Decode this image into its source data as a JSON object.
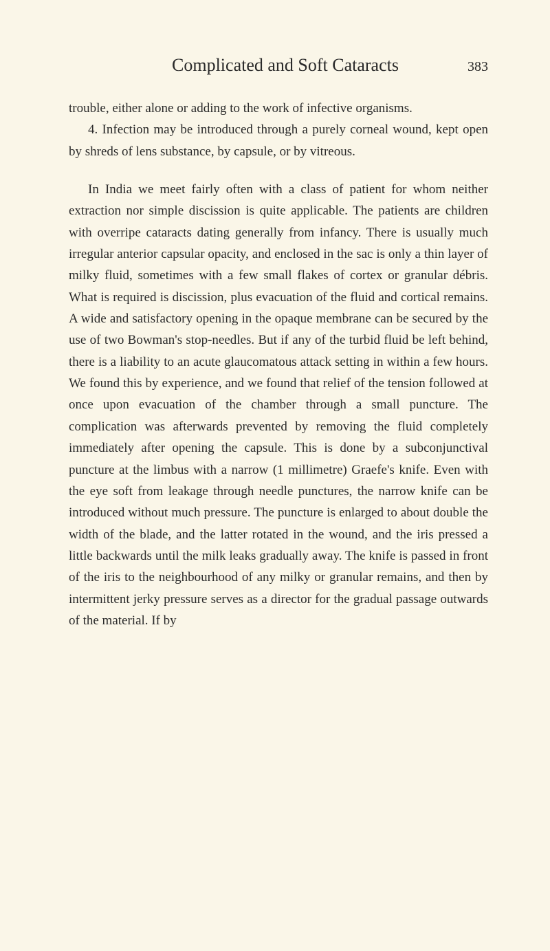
{
  "header": {
    "title": "Complicated and Soft Cataracts",
    "page_number": "383"
  },
  "paragraphs": {
    "p1": "trouble, either alone or adding to the work of infective organisms.",
    "p2": "4. Infection may be introduced through a purely corneal wound, kept open by shreds of lens substance, by capsule, or by vitreous.",
    "p3": "In India we meet fairly often with a class of patient for whom neither extraction nor simple discission is quite applicable. The patients are children with overripe cataracts dating generally from infancy. There is usually much irregular anterior capsular opacity, and enclosed in the sac is only a thin layer of milky fluid, sometimes with a few small flakes of cortex or granular débris. What is required is discission, plus evacuation of the fluid and cortical remains. A wide and satisfactory opening in the opaque membrane can be secured by the use of two Bowman's stop-needles. But if any of the turbid fluid be left behind, there is a liability to an acute glaucomatous attack setting in within a few hours. We found this by experience, and we found that relief of the tension followed at once upon evacuation of the chamber through a small puncture. The complication was afterwards prevented by removing the fluid completely immediately after opening the capsule. This is done by a subconjunctival puncture at the limbus with a narrow (1 millimetre) Graefe's knife. Even with the eye soft from leakage through needle punctures, the narrow knife can be introduced without much pressure. The puncture is enlarged to about double the width of the blade, and the latter rotated in the wound, and the iris pressed a little backwards until the milk leaks gradually away. The knife is passed in front of the iris to the neighbourhood of any milky or granular remains, and then by intermittent jerky pressure serves as a director for the gradual passage outwards of the material. If by"
  },
  "colors": {
    "background": "#faf6e8",
    "text": "#2a2a2a"
  },
  "typography": {
    "title_fontsize": 26,
    "body_fontsize": 19,
    "page_number_fontsize": 20,
    "line_height": 1.65,
    "font_family": "Georgia, Times New Roman, serif"
  }
}
